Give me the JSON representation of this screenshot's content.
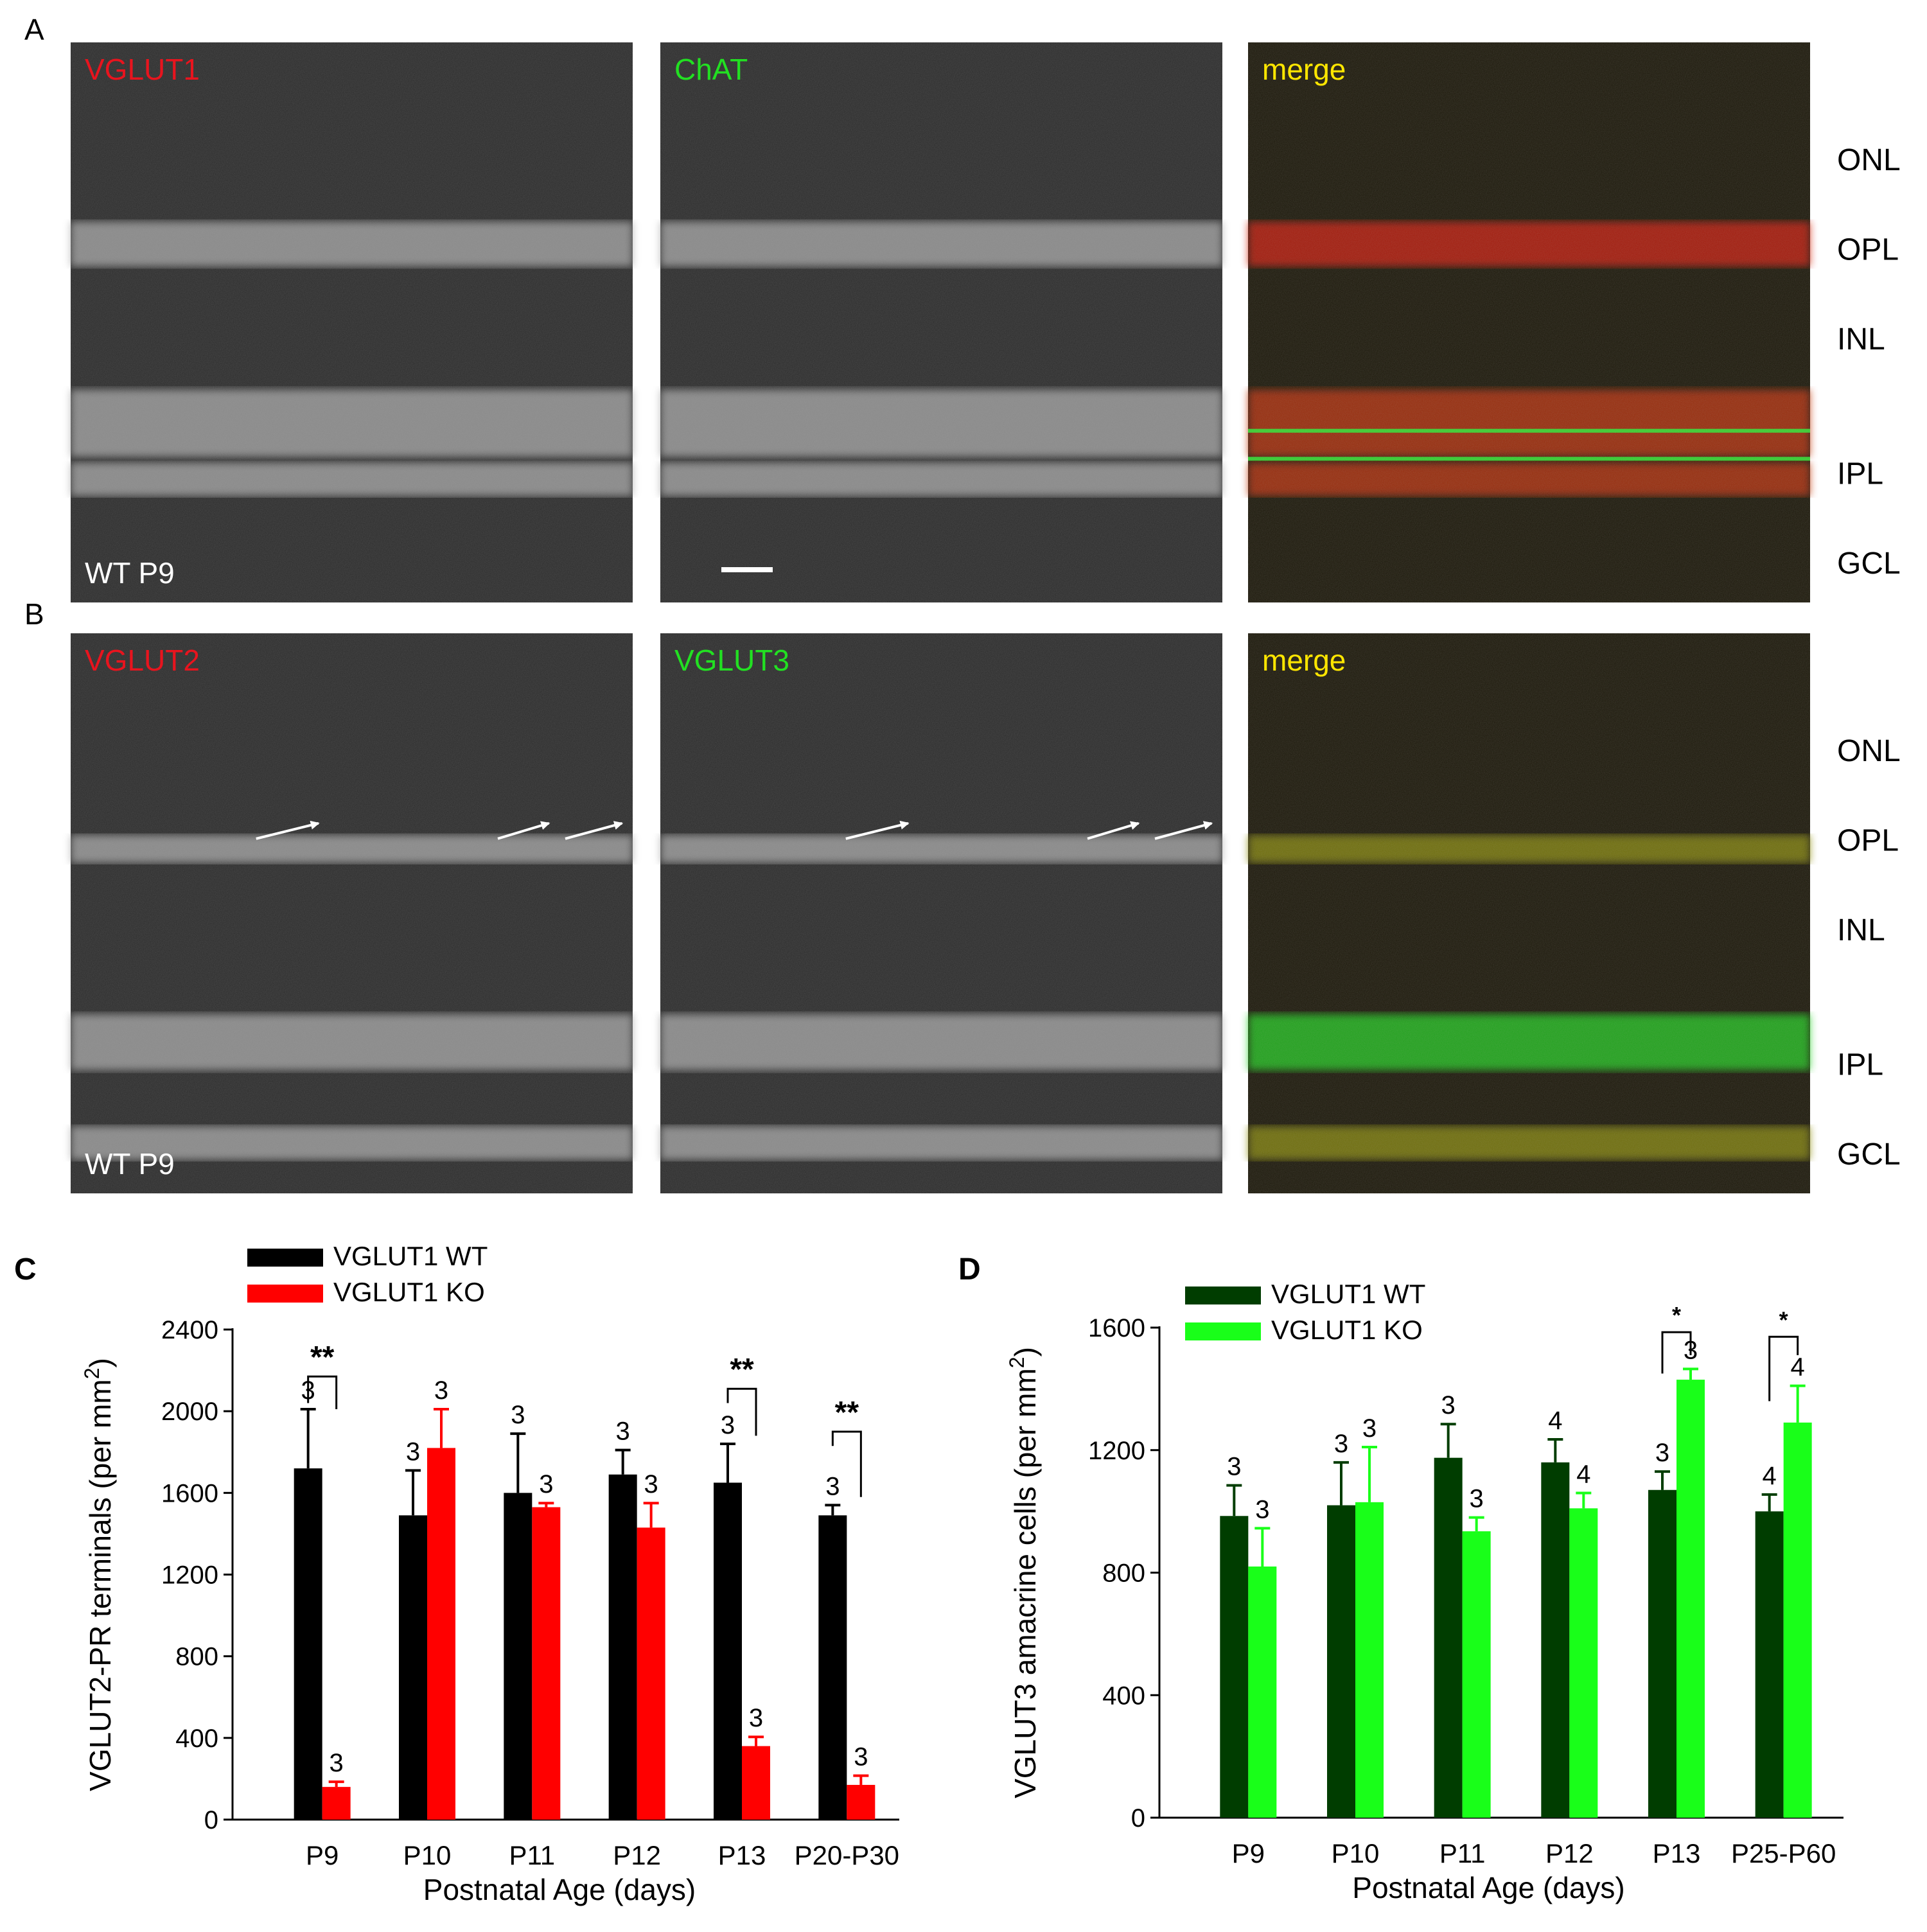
{
  "colors": {
    "wt_black": "#000000",
    "ko_red": "#ff0000",
    "wt_dark_green": "#003d00",
    "ko_bright_green": "#19ff19",
    "label_red": "#e8141e",
    "label_green": "#22e022",
    "label_yellow": "#ffe600"
  },
  "panels": {
    "A": {
      "letter": "A",
      "images": [
        {
          "label": "VGLUT1",
          "label_color": "red",
          "tone": "gray",
          "corner": "WT P9"
        },
        {
          "label": "ChAT",
          "label_color": "green",
          "tone": "gray",
          "corner": ""
        },
        {
          "label": "merge",
          "label_color": "yellow",
          "tone": "merge",
          "corner": ""
        }
      ],
      "layers": [
        "ONL",
        "OPL",
        "INL",
        "IPL",
        "GCL"
      ]
    },
    "B": {
      "letter": "B",
      "images": [
        {
          "label": "VGLUT2",
          "label_color": "red",
          "tone": "gray",
          "corner": "WT P9"
        },
        {
          "label": "VGLUT3",
          "label_color": "green",
          "tone": "gray",
          "corner": ""
        },
        {
          "label": "merge",
          "label_color": "yellow",
          "tone": "merge",
          "corner": ""
        }
      ],
      "layers": [
        "ONL",
        "OPL",
        "INL",
        "IPL",
        "GCL"
      ]
    }
  },
  "chart_data": [
    {
      "panel": "C",
      "type": "bar",
      "ylabel": "VGLUT2-PR terminals (per mm²)",
      "xlabel": "Postnatal Age (days)",
      "ylim": [
        0,
        2400
      ],
      "yticks": [
        0,
        400,
        800,
        1200,
        1600,
        2000,
        2400
      ],
      "categories": [
        "P9",
        "P10",
        "P11",
        "P12",
        "P13",
        "P20-P30"
      ],
      "legend_position": "top-left",
      "series": [
        {
          "name": "VGLUT1 WT",
          "color": "#000000",
          "values": [
            1720,
            1490,
            1600,
            1690,
            1650,
            1490
          ],
          "errors": [
            290,
            220,
            290,
            120,
            190,
            50
          ],
          "n": [
            "3",
            "3",
            "3",
            "3",
            "3",
            "3"
          ]
        },
        {
          "name": "VGLUT1 KO",
          "color": "#ff0000",
          "values": [
            160,
            1820,
            1530,
            1430,
            360,
            170
          ],
          "errors": [
            25,
            190,
            20,
            120,
            45,
            45
          ],
          "n": [
            "3",
            "3",
            "3",
            "3",
            "3",
            "3"
          ]
        }
      ],
      "significance": [
        {
          "category": 0,
          "label": "**",
          "top": 2170,
          "left_drop": 2040,
          "right_drop": 2010
        },
        {
          "category": 4,
          "label": "**",
          "top": 2110,
          "left_drop": 2040,
          "right_drop": 1880
        },
        {
          "category": 5,
          "label": "**",
          "top": 1900,
          "left_drop": 1830,
          "right_drop": 1580
        }
      ]
    },
    {
      "panel": "D",
      "type": "bar",
      "ylabel": "VGLUT3 amacrine cells (per mm²)",
      "xlabel": "Postnatal Age (days)",
      "ylim": [
        0,
        1600
      ],
      "yticks": [
        0,
        400,
        800,
        1200,
        1600
      ],
      "categories": [
        "P9",
        "P10",
        "P11",
        "P12",
        "P13",
        "P25-P60"
      ],
      "legend_position": "top-left",
      "series": [
        {
          "name": "VGLUT1 WT",
          "color": "#003d00",
          "values": [
            985,
            1020,
            1175,
            1160,
            1070,
            1000
          ],
          "errors": [
            100,
            140,
            110,
            75,
            60,
            55
          ],
          "n": [
            "3",
            "3",
            "3",
            "4",
            "3",
            "4"
          ]
        },
        {
          "name": "VGLUT1 KO",
          "color": "#19ff19",
          "values": [
            820,
            1030,
            935,
            1010,
            1430,
            1290
          ],
          "errors": [
            125,
            180,
            45,
            50,
            35,
            120
          ],
          "n": [
            "3",
            "3",
            "3",
            "4",
            "3",
            "4"
          ]
        }
      ],
      "significance": [
        {
          "category": 4,
          "label": "*",
          "top": 1585,
          "left_drop": 1450,
          "right_drop": 1510
        },
        {
          "category": 5,
          "label": "*",
          "top": 1570,
          "left_drop": 1360,
          "right_drop": 1510
        }
      ]
    }
  ],
  "panel_letters": {
    "C": "C",
    "D": "D"
  }
}
